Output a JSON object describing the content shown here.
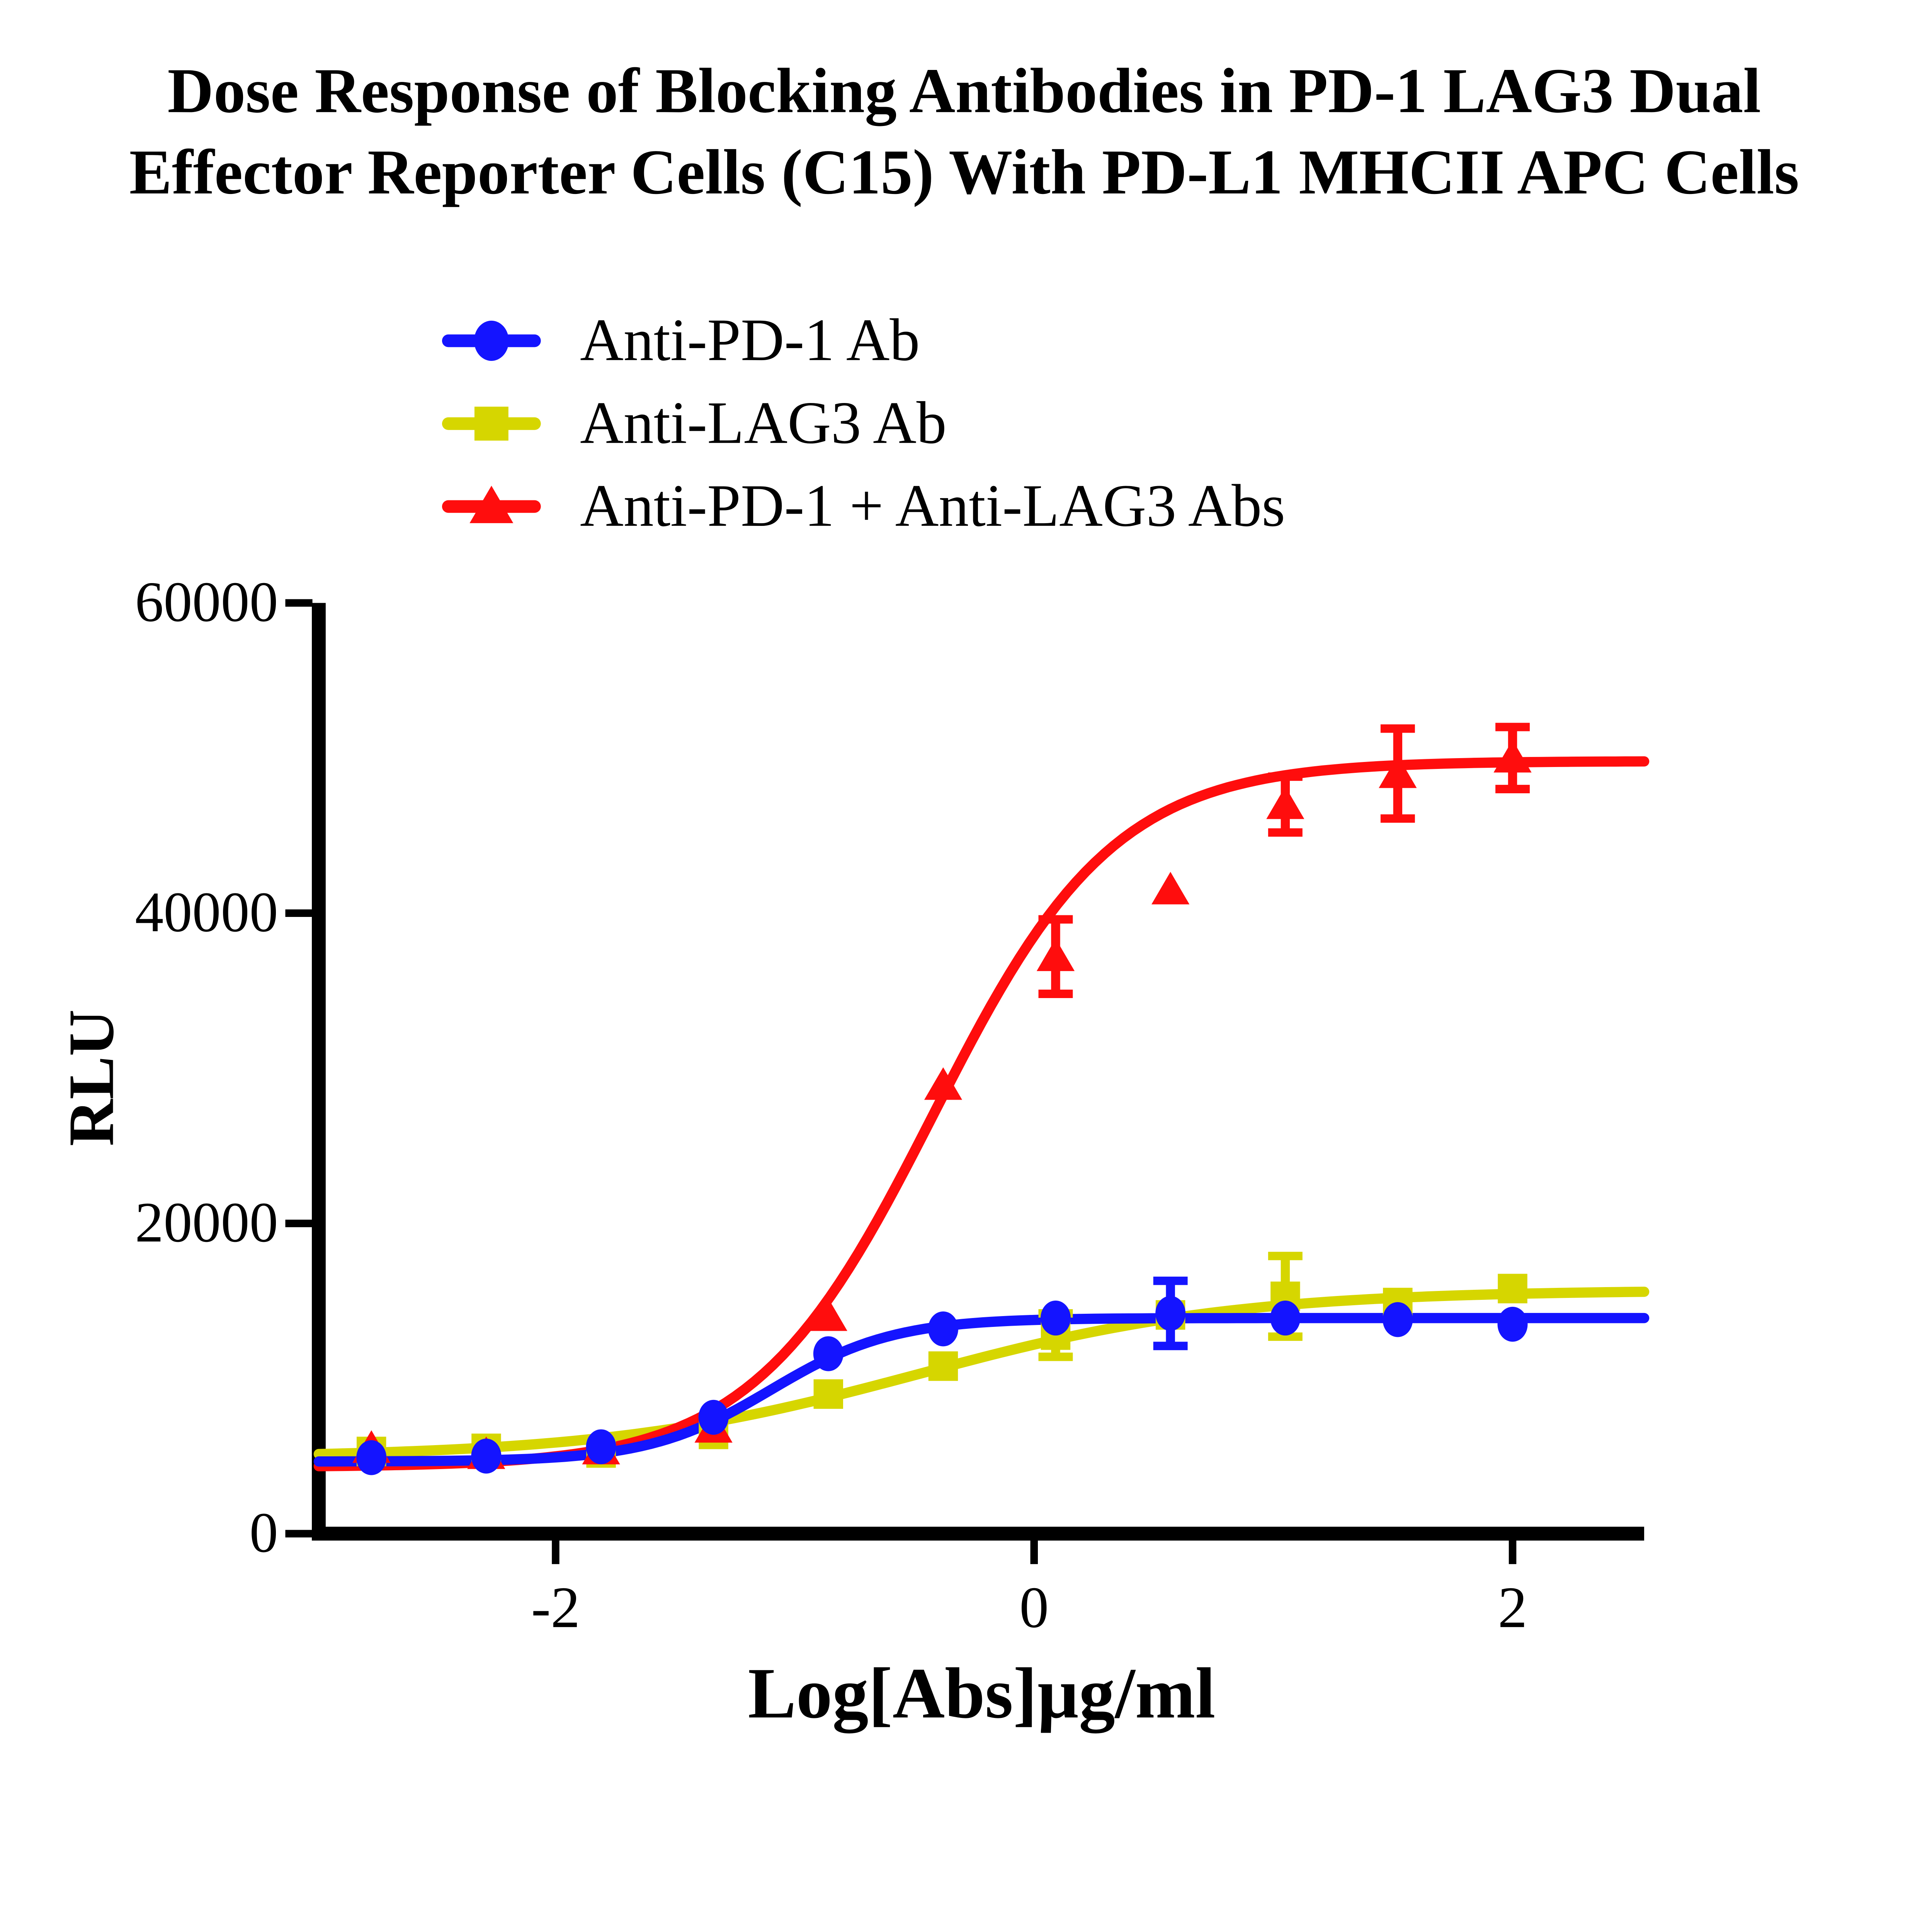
{
  "title": {
    "line1": "Dose Response of Blocking Antibodies in PD-1 LAG3 Dual",
    "line2": "Effector Reporter Cells (C15) With PD-L1 MHCII APC Cells"
  },
  "chart_data": {
    "type": "scatter",
    "title": "Dose Response of Blocking Antibodies in PD-1 LAG3 Dual Effector Reporter Cells (C15) With PD-L1 MHCII APC Cells",
    "xlabel": "Log[Abs]µg/ml",
    "ylabel": "RLU",
    "xlim": [
      -2.99,
      2.55
    ],
    "ylim": [
      0,
      60000
    ],
    "x_ticks": [
      -2,
      0,
      2
    ],
    "y_ticks": [
      0,
      20000,
      40000,
      60000
    ],
    "grid": false,
    "legend_position": "top-left-above-plot",
    "x": [
      -2.77,
      -2.29,
      -1.81,
      -1.34,
      -0.86,
      -0.38,
      0.09,
      0.57,
      1.05,
      1.52,
      2.0
    ],
    "series": [
      {
        "name": "Anti-PD-1 Ab",
        "color": "#1414FF",
        "marker": "circle",
        "values": [
          4900,
          5000,
          5600,
          7500,
          11600,
          13200,
          13900,
          14200,
          13900,
          13800,
          13500
        ],
        "errors": [
          0,
          0,
          0,
          0,
          0,
          0,
          0,
          2100,
          0,
          0,
          0
        ],
        "fit": {
          "bottom": 4650,
          "top": 13900,
          "logec50": -1.1,
          "hill": 1.7
        }
      },
      {
        "name": "Anti-LAG3 Ab",
        "color": "#D6D600",
        "marker": "square",
        "values": [
          5300,
          5500,
          5200,
          6400,
          9000,
          10800,
          12800,
          14100,
          15300,
          14900,
          15800
        ],
        "errors": [
          0,
          0,
          0,
          0,
          0,
          0,
          1400,
          0,
          2600,
          0,
          0
        ],
        "fit": {
          "bottom": 4900,
          "top": 15700,
          "logec50": -0.48,
          "hill": 0.66
        }
      },
      {
        "name": "Anti-PD-1 + Anti-LAG3 Abs",
        "color": "#FF0D0D",
        "marker": "triangle",
        "values": [
          5500,
          5100,
          5400,
          6800,
          14000,
          28900,
          37200,
          41500,
          47000,
          49000,
          50000
        ],
        "errors": [
          0,
          0,
          0,
          0,
          0,
          0,
          2400,
          0,
          1800,
          2900,
          2000
        ],
        "fit": {
          "bottom": 4300,
          "top": 49800,
          "logec50": -0.42,
          "hill": 1.15
        }
      }
    ]
  }
}
